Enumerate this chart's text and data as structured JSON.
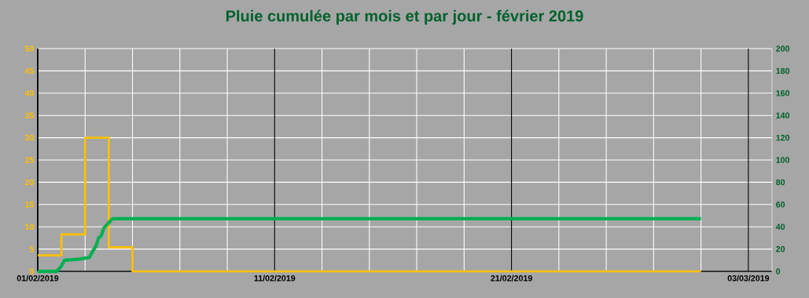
{
  "chart_data": {
    "type": "step",
    "title": "Pluie cumulée par mois et par jour - février 2019",
    "xlim": [
      "2019-02-01",
      "2019-03-04"
    ],
    "xticks": [
      {
        "value": "2019-02-01",
        "label": "01/02/2019"
      },
      {
        "value": "2019-02-03",
        "label": null
      },
      {
        "value": "2019-02-05",
        "label": null
      },
      {
        "value": "2019-02-07",
        "label": null
      },
      {
        "value": "2019-02-09",
        "label": null
      },
      {
        "value": "2019-02-11",
        "label": "11/02/2019"
      },
      {
        "value": "2019-02-13",
        "label": null
      },
      {
        "value": "2019-02-15",
        "label": null
      },
      {
        "value": "2019-02-17",
        "label": null
      },
      {
        "value": "2019-02-19",
        "label": null
      },
      {
        "value": "2019-02-21",
        "label": "21/02/2019"
      },
      {
        "value": "2019-02-23",
        "label": null
      },
      {
        "value": "2019-02-25",
        "label": null
      },
      {
        "value": "2019-02-27",
        "label": null
      },
      {
        "value": "2019-03-01",
        "label": null
      },
      {
        "value": "2019-03-03",
        "label": "03/03/2019"
      }
    ],
    "ylim": [
      0,
      50
    ],
    "yticks": [
      0,
      5,
      10,
      15,
      20,
      25,
      30,
      35,
      40,
      45,
      50
    ],
    "y2lim": [
      0,
      200
    ],
    "y2ticks": [
      0,
      20,
      40,
      60,
      80,
      100,
      120,
      140,
      160,
      180,
      200
    ],
    "grid": true,
    "series": [
      {
        "color": "#ffc000",
        "x": [
          "2019-02-01",
          "2019-02-02",
          "2019-02-03",
          "2019-02-04",
          "2019-02-05",
          "2019-02-06",
          "2019-02-07",
          "2019-02-08",
          "2019-02-09",
          "2019-02-10",
          "2019-02-11",
          "2019-02-12",
          "2019-02-13",
          "2019-02-14",
          "2019-02-15",
          "2019-02-16",
          "2019-02-17",
          "2019-02-18",
          "2019-02-19",
          "2019-02-20",
          "2019-02-21",
          "2019-02-22",
          "2019-02-23",
          "2019-02-24",
          "2019-02-25",
          "2019-02-26",
          "2019-02-27",
          "2019-02-28",
          "2019-03-01"
        ],
        "values": [
          3.6,
          8.3,
          30,
          5.4,
          0,
          0,
          0,
          0,
          0,
          0,
          0,
          0,
          0,
          0,
          0,
          0,
          0,
          0,
          0,
          0,
          0,
          0,
          0,
          0,
          0,
          0,
          0,
          0,
          0
        ]
      },
      {
        "type": "line",
        "axis": "y2",
        "color": "#00b050",
        "x": [
          "2019-02-01",
          "2019-02-01T19:12",
          "2019-02-01T23:31",
          "2019-02-02T03:07",
          "2019-02-02T12:00",
          "2019-02-02T17:46",
          "2019-02-03T04:19",
          "2019-02-03T06:58",
          "2019-02-03T11:02",
          "2019-02-03T13:41",
          "2019-02-03T16:19",
          "2019-02-03T18:58",
          "2019-02-03T23:02",
          "2019-02-04T02:53",
          "2019-02-04T04:19",
          "2019-03-01"
        ],
        "values": [
          0,
          0,
          4.2,
          10,
          10.5,
          11,
          12.4,
          17,
          22.8,
          30,
          32,
          39,
          42.7,
          46.6,
          47.3,
          47.3
        ]
      }
    ]
  }
}
